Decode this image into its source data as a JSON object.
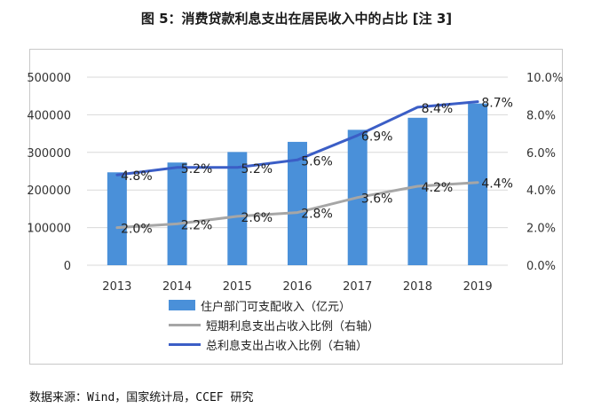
{
  "title": "图 5：消费贷款利息支出在居民收入中的占比 [注 3]",
  "source": "数据来源：Wind，国家统计局，CCEF 研究",
  "colors": {
    "bar": "#4a90d9",
    "short_line": "#a6a6a6",
    "total_line": "#3b5ec6"
  },
  "chart_data": {
    "type": "bar",
    "categories": [
      "2013",
      "2014",
      "2015",
      "2016",
      "2017",
      "2018",
      "2019"
    ],
    "ylim": [
      0,
      500000
    ],
    "y_ticks": [
      "0",
      "100000",
      "200000",
      "300000",
      "400000",
      "500000"
    ],
    "y2lim": [
      0,
      10
    ],
    "y2_ticks": [
      "0.0%",
      "2.0%",
      "4.0%",
      "6.0%",
      "8.0%",
      "10.0%"
    ],
    "grid": true,
    "legend_placement": "bottom",
    "series": [
      {
        "name": "住户部门可支配收入（亿元）",
        "type": "bar",
        "axis": "left",
        "values": [
          247000,
          273000,
          301000,
          328000,
          360000,
          392000,
          430000
        ]
      },
      {
        "name": "短期利息支出占收入比例（右轴）",
        "type": "line",
        "axis": "right",
        "values": [
          2.0,
          2.2,
          2.6,
          2.8,
          3.6,
          4.2,
          4.4
        ],
        "labels": [
          "2.0%",
          "2.2%",
          "2.6%",
          "2.8%",
          "3.6%",
          "4.2%",
          "4.4%"
        ]
      },
      {
        "name": "总利息支出占收入比例（右轴）",
        "type": "line",
        "axis": "right",
        "values": [
          4.8,
          5.2,
          5.2,
          5.6,
          6.9,
          8.4,
          8.7
        ],
        "labels": [
          "4.8%",
          "5.2%",
          "5.2%",
          "5.6%",
          "6.9%",
          "8.4%",
          "8.7%"
        ]
      }
    ]
  }
}
